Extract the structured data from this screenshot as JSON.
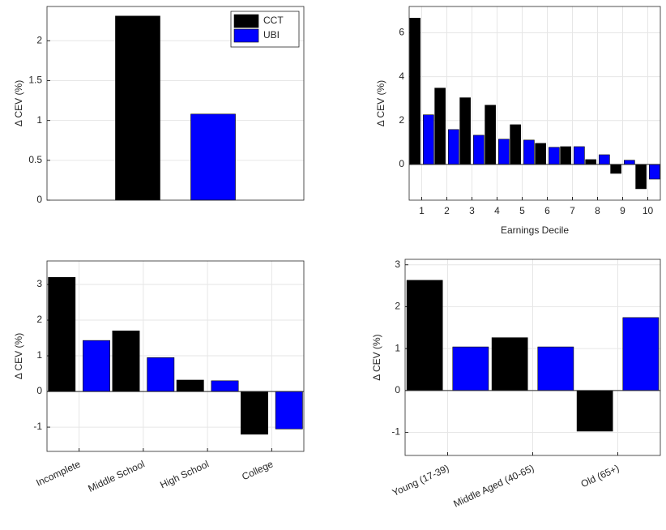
{
  "chart_data": [
    {
      "type": "bar",
      "ylabel": "Δ CEV (%)",
      "categories": [
        null
      ],
      "series": [
        {
          "name": "CCT",
          "color": "#000000",
          "values": [
            2.31
          ]
        },
        {
          "name": "UBI",
          "color": "#0000ff",
          "values": [
            1.08
          ]
        }
      ],
      "ylim": [
        0,
        2.43
      ],
      "yticks": [
        0,
        0.5,
        1,
        1.5,
        2
      ],
      "grid": true,
      "legend": "upper right"
    },
    {
      "type": "bar",
      "ylabel": "Δ CEV (%)",
      "xlabel": "Earnings Decile",
      "categories": [
        "1",
        "2",
        "3",
        "4",
        "5",
        "6",
        "7",
        "8",
        "9",
        "10"
      ],
      "series": [
        {
          "name": "CCT",
          "color": "#000000",
          "values": [
            6.67,
            3.48,
            3.04,
            2.7,
            1.81,
            0.96,
            0.81,
            0.22,
            -0.41,
            -1.11
          ]
        },
        {
          "name": "UBI",
          "color": "#0000ff",
          "values": [
            2.26,
            1.59,
            1.33,
            1.15,
            1.11,
            0.78,
            0.81,
            0.44,
            0.19,
            -0.67
          ]
        }
      ],
      "ylim": [
        -1.63,
        7.2
      ],
      "yticks": [
        0,
        2,
        4,
        6
      ],
      "grid": true
    },
    {
      "type": "bar",
      "ylabel": "Δ CEV (%)",
      "categories": [
        "Incomplete",
        "Middle School",
        "High School",
        "College"
      ],
      "series": [
        {
          "name": "CCT",
          "color": "#000000",
          "values": [
            3.2,
            1.7,
            0.32,
            -1.2
          ]
        },
        {
          "name": "UBI",
          "color": "#0000ff",
          "values": [
            1.43,
            0.95,
            0.3,
            -1.05
          ]
        }
      ],
      "ylim": [
        -1.68,
        3.66
      ],
      "yticks": [
        -1,
        0,
        1,
        2,
        3
      ],
      "grid": true
    },
    {
      "type": "bar",
      "ylabel": "Δ CEV (%)",
      "categories": [
        "Young (17-39)",
        "Middle Aged (40-65)",
        "Old (65+)"
      ],
      "series": [
        {
          "name": "CCT",
          "color": "#000000",
          "values": [
            2.63,
            1.26,
            -0.97
          ]
        },
        {
          "name": "UBI",
          "color": "#0000ff",
          "values": [
            1.04,
            1.04,
            1.74
          ]
        }
      ],
      "ylim": [
        -1.55,
        3.13
      ],
      "yticks": [
        -1,
        0,
        1,
        2,
        3
      ],
      "grid": true
    }
  ]
}
